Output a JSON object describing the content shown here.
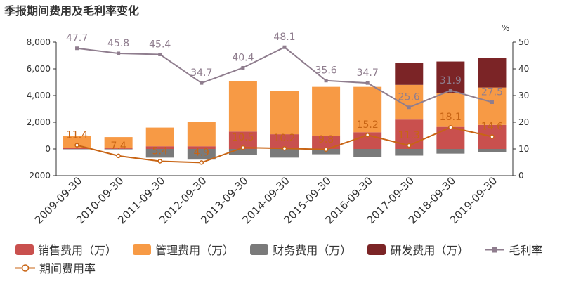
{
  "chart_data": {
    "type": "bar",
    "title": "季报期间费用及毛利率变化",
    "categories": [
      "2009-09-30",
      "2010-09-30",
      "2011-09-30",
      "2012-09-30",
      "2013-09-30",
      "2014-09-30",
      "2015-09-30",
      "2016-09-30",
      "2017-09-30",
      "2018-09-30",
      "2019-09-30"
    ],
    "left_axis": {
      "min": -2000,
      "max": 8000,
      "ticks": [
        "-2000",
        "0",
        "2,000",
        "4,000",
        "6,000",
        "8,000"
      ]
    },
    "right_axis": {
      "unit": "%",
      "min": 0,
      "max": 50,
      "ticks": [
        "0",
        "10",
        "20",
        "30",
        "40",
        "50"
      ]
    },
    "bar_series": [
      {
        "name": "销售费用（万）",
        "color": "#c9504e",
        "values": [
          60,
          50,
          200,
          200,
          1300,
          1100,
          1000,
          1250,
          2200,
          1650,
          1800
        ]
      },
      {
        "name": "管理费用（万）",
        "color": "#f79a45",
        "values": [
          940,
          840,
          1400,
          1850,
          3800,
          3250,
          3650,
          3400,
          2600,
          2550,
          2800
        ]
      },
      {
        "name": "财务费用（万）",
        "color": "#7a7a7a",
        "values": [
          -20,
          -30,
          -650,
          -800,
          -450,
          -650,
          -400,
          -600,
          -500,
          -350,
          -250
        ]
      },
      {
        "name": "研发费用（万）",
        "color": "#7b2426",
        "values": [
          0,
          0,
          0,
          0,
          0,
          0,
          0,
          0,
          1650,
          2350,
          2200
        ]
      }
    ],
    "line_series": [
      {
        "name": "毛利率",
        "color": "#8f7d8e",
        "marker": "square",
        "values": [
          47.7,
          45.8,
          45.4,
          34.7,
          40.4,
          48.1,
          35.6,
          34.7,
          25.6,
          31.9,
          27.5
        ],
        "labels": [
          "47.7",
          "45.8",
          "45.4",
          "34.7",
          "40.4",
          "48.1",
          "35.6",
          "34.7",
          "25.6",
          "31.9",
          "27.5"
        ]
      },
      {
        "name": "期间费用率",
        "color": "#c86414",
        "marker": "circle",
        "values": [
          11.4,
          7.4,
          5.4,
          4.9,
          10.5,
          10.2,
          9.8,
          15.2,
          11.3,
          18.1,
          14.6
        ],
        "labels": [
          "11.4",
          "7.4",
          "5.4",
          "4.9",
          "10.5",
          "10.2",
          "9.8",
          "15.2",
          "11.3",
          "18.1",
          "14.6"
        ]
      }
    ],
    "grid": false,
    "legend_position": "bottom"
  }
}
